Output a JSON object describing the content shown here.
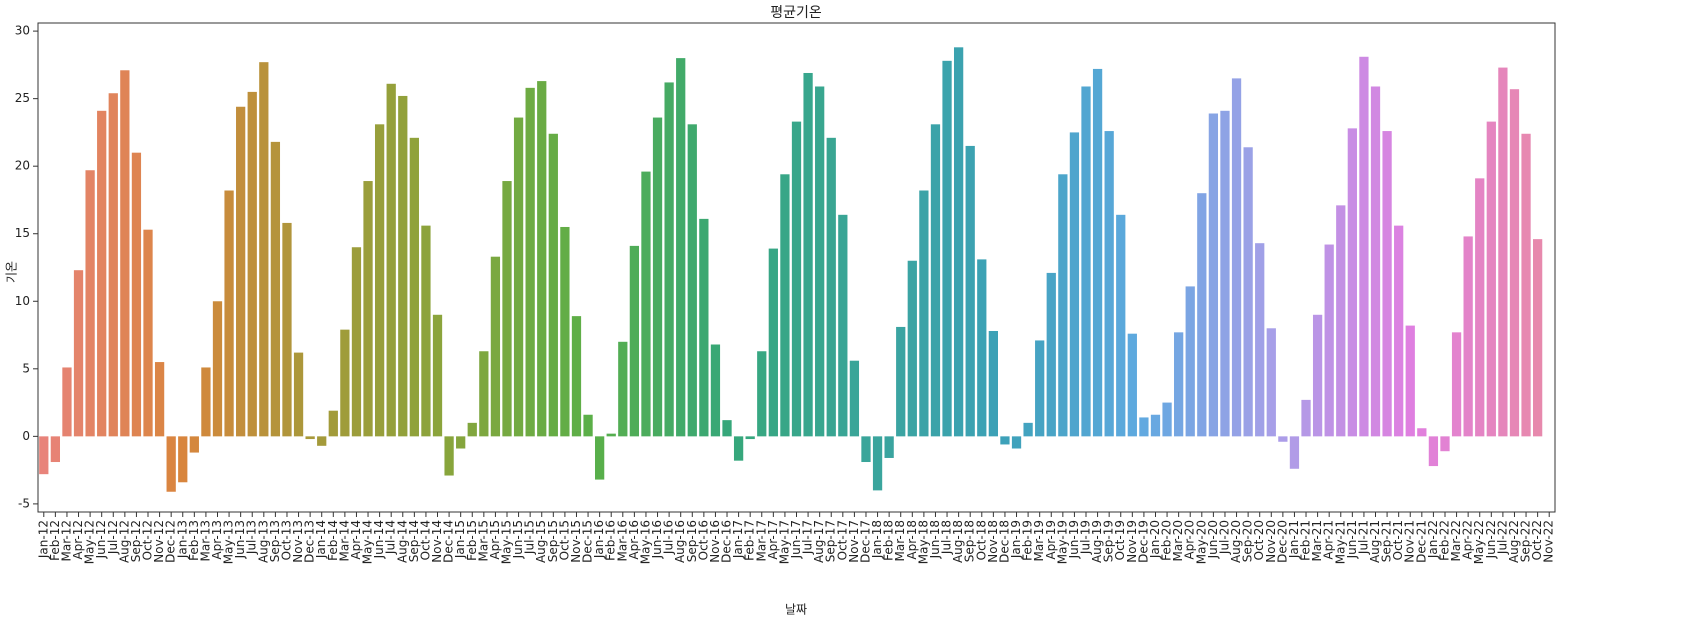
{
  "chart_data": {
    "type": "bar",
    "title": "평균기온",
    "xlabel": "날짜",
    "ylabel": "기온",
    "categories": [
      "Jan-12",
      "Feb-12",
      "Mar-12",
      "Apr-12",
      "May-12",
      "Jun-12",
      "Jul-12",
      "Aug-12",
      "Sep-12",
      "Oct-12",
      "Nov-12",
      "Dec-12",
      "Jan-13",
      "Feb-13",
      "Mar-13",
      "Apr-13",
      "May-13",
      "Jun-13",
      "Jul-13",
      "Aug-13",
      "Sep-13",
      "Oct-13",
      "Nov-13",
      "Dec-13",
      "Jan-14",
      "Feb-14",
      "Mar-14",
      "Apr-14",
      "May-14",
      "Jun-14",
      "Jul-14",
      "Aug-14",
      "Sep-14",
      "Oct-14",
      "Nov-14",
      "Dec-14",
      "Jan-15",
      "Feb-15",
      "Mar-15",
      "Apr-15",
      "May-15",
      "Jun-15",
      "Jul-15",
      "Aug-15",
      "Sep-15",
      "Oct-15",
      "Nov-15",
      "Dec-15",
      "Jan-16",
      "Feb-16",
      "Mar-16",
      "Apr-16",
      "May-16",
      "Jun-16",
      "Jul-16",
      "Aug-16",
      "Sep-16",
      "Oct-16",
      "Nov-16",
      "Dec-16",
      "Jan-17",
      "Feb-17",
      "Mar-17",
      "Apr-17",
      "May-17",
      "Jun-17",
      "Jul-17",
      "Aug-17",
      "Sep-17",
      "Oct-17",
      "Nov-17",
      "Dec-17",
      "Jan-18",
      "Feb-18",
      "Mar-18",
      "Apr-18",
      "May-18",
      "Jun-18",
      "Jul-18",
      "Aug-18",
      "Sep-18",
      "Oct-18",
      "Nov-18",
      "Dec-18",
      "Jan-19",
      "Feb-19",
      "Mar-19",
      "Apr-19",
      "May-19",
      "Jun-19",
      "Jul-19",
      "Aug-19",
      "Sep-19",
      "Oct-19",
      "Nov-19",
      "Dec-19",
      "Jan-20",
      "Feb-20",
      "Mar-20",
      "Apr-20",
      "May-20",
      "Jun-20",
      "Jul-20",
      "Aug-20",
      "Sep-20",
      "Oct-20",
      "Nov-20",
      "Dec-20",
      "Jan-21",
      "Feb-21",
      "Mar-21",
      "Apr-21",
      "May-21",
      "Jun-21",
      "Jul-21",
      "Aug-21",
      "Sep-21",
      "Oct-21",
      "Nov-21",
      "Dec-21",
      "Jan-22",
      "Feb-22",
      "Mar-22",
      "Apr-22",
      "May-22",
      "Jun-22",
      "Jul-22",
      "Aug-22",
      "Sep-22",
      "Oct-22",
      "Nov-22"
    ],
    "values": [
      -2.8,
      -1.9,
      5.1,
      12.3,
      19.7,
      24.1,
      25.4,
      27.1,
      21.0,
      15.3,
      5.5,
      -4.1,
      -3.4,
      -1.2,
      5.1,
      10.0,
      18.2,
      24.4,
      25.5,
      27.7,
      21.8,
      15.8,
      6.2,
      -0.2,
      -0.7,
      1.9,
      7.9,
      14.0,
      18.9,
      23.1,
      26.1,
      25.2,
      22.1,
      15.6,
      9.0,
      -2.9,
      -0.9,
      1.0,
      6.3,
      13.3,
      18.9,
      23.6,
      25.8,
      26.3,
      22.4,
      15.5,
      8.9,
      1.6,
      -3.2,
      0.2,
      7.0,
      14.1,
      19.6,
      23.6,
      26.2,
      28.0,
      23.1,
      16.1,
      6.8,
      1.2,
      -1.8,
      -0.2,
      6.3,
      13.9,
      19.4,
      23.3,
      26.9,
      25.9,
      22.1,
      16.4,
      5.6,
      -1.9,
      -4.0,
      -1.6,
      8.1,
      13.0,
      18.2,
      23.1,
      27.8,
      28.8,
      21.5,
      13.1,
      7.8,
      -0.6,
      -0.9,
      1.0,
      7.1,
      12.1,
      19.4,
      22.5,
      25.9,
      27.2,
      22.6,
      16.4,
      7.6,
      1.4,
      1.6,
      2.5,
      7.7,
      11.1,
      18.0,
      23.9,
      24.1,
      26.5,
      21.4,
      14.3,
      8.0,
      -0.4,
      -2.4,
      2.7,
      9.0,
      14.2,
      17.1,
      22.8,
      28.1,
      25.9,
      22.6,
      15.6,
      8.2,
      0.6,
      -2.2,
      -1.1,
      7.7,
      14.8,
      19.1,
      23.3,
      27.3,
      25.7,
      22.4,
      14.6,
      null
    ],
    "palette": [
      "#e8837a",
      "#d9853d",
      "#a59a3a",
      "#87a53c",
      "#5aaf48",
      "#36a77a",
      "#3aa59a",
      "#3ca1b8",
      "#5fa9e0",
      "#a99fe8",
      "#e07fe0",
      "#e88aa8"
    ],
    "ylim": [
      -5.6,
      30.6
    ],
    "yticks": [
      -5,
      0,
      5,
      10,
      15,
      20,
      25,
      30
    ]
  }
}
